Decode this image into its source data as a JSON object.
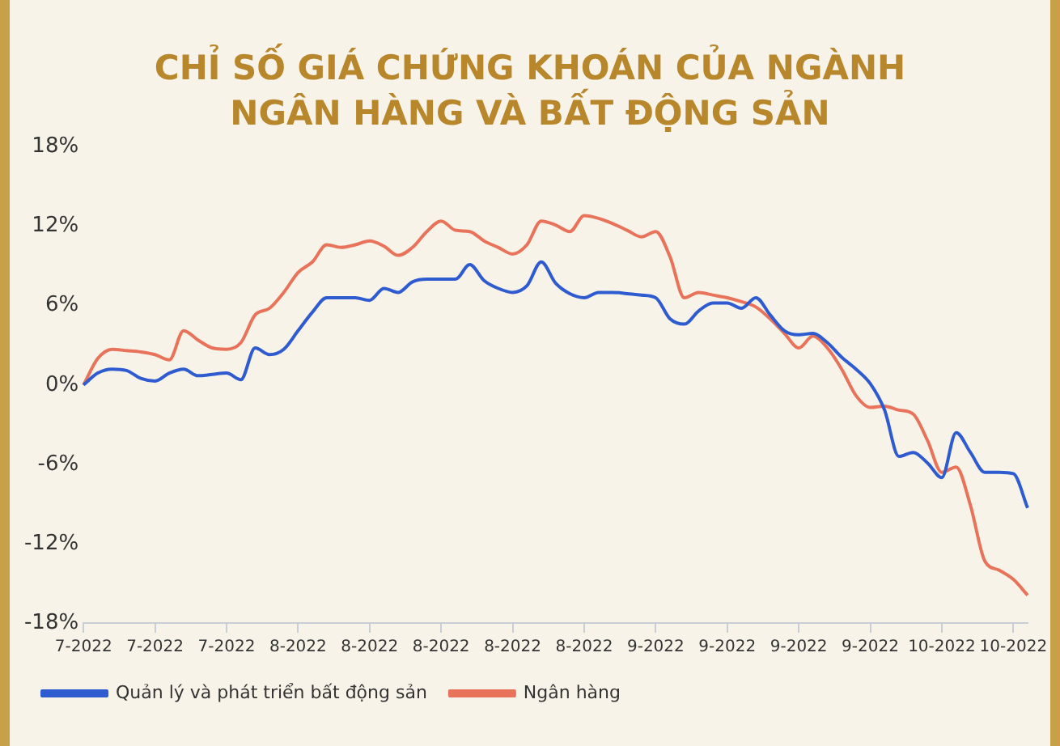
{
  "chart_data": {
    "type": "line",
    "title": "CHỈ SỐ GIÁ CHỨNG KHOÁN CỦA NGÀNH NGÂN HÀNG VÀ BẤT ĐỘNG SẢN",
    "categories": [
      "7-2022",
      null,
      null,
      null,
      null,
      "7-2022",
      null,
      null,
      null,
      null,
      "7-2022",
      null,
      null,
      null,
      null,
      "8-2022",
      null,
      null,
      null,
      null,
      "8-2022",
      null,
      null,
      null,
      null,
      "8-2022",
      null,
      null,
      null,
      null,
      "8-2022",
      null,
      null,
      null,
      null,
      "8-2022",
      null,
      null,
      null,
      null,
      "9-2022",
      null,
      null,
      null,
      null,
      "9-2022",
      null,
      null,
      null,
      null,
      "9-2022",
      null,
      null,
      null,
      null,
      "9-2022",
      null,
      null,
      null,
      null,
      "10-2022",
      null,
      null,
      null,
      null,
      "10-2022",
      null
    ],
    "series": [
      {
        "name": "Quản lý và phát triển bất động sản",
        "color": "#2f5bd0",
        "values": [
          0,
          0.9,
          1.2,
          1.1,
          0.5,
          0.3,
          0.9,
          1.2,
          0.7,
          0.8,
          0.9,
          0.4,
          2.8,
          2.3,
          2.7,
          4.1,
          5.5,
          6.6,
          6.6,
          6.6,
          6.4,
          7.3,
          7.0,
          7.8,
          8.0,
          8.0,
          8.0,
          9.1,
          7.9,
          7.3,
          7.0,
          7.5,
          9.3,
          7.7,
          6.9,
          6.6,
          7.0,
          7.0,
          6.9,
          6.8,
          6.6,
          5.0,
          4.6,
          5.6,
          6.2,
          6.2,
          5.8,
          6.6,
          5.3,
          4.1,
          3.8,
          3.9,
          3.2,
          2.1,
          1.2,
          0.1,
          -1.9,
          -5.4,
          -5.1,
          -5.9,
          -7.0,
          -3.6,
          -5.1,
          -6.6,
          -6.6,
          -6.7,
          -9.3
        ]
      },
      {
        "name": "Ngân hàng",
        "color": "#e8735a",
        "values": [
          0,
          2.0,
          2.7,
          2.6,
          2.5,
          2.3,
          1.9,
          4.1,
          3.4,
          2.8,
          2.7,
          3.2,
          5.3,
          5.8,
          7.0,
          8.5,
          9.3,
          10.6,
          10.4,
          10.6,
          10.9,
          10.5,
          9.8,
          10.4,
          11.6,
          12.4,
          11.7,
          11.6,
          10.9,
          10.4,
          9.9,
          10.6,
          12.4,
          12.1,
          11.6,
          12.8,
          12.6,
          12.2,
          11.7,
          11.2,
          11.6,
          9.7,
          6.6,
          7.0,
          6.8,
          6.6,
          6.3,
          5.9,
          5.0,
          3.9,
          2.8,
          3.7,
          2.8,
          1.2,
          -0.8,
          -1.7,
          -1.6,
          -1.9,
          -2.2,
          -4.2,
          -6.6,
          -6.2,
          -9.1,
          -13.3,
          -14.0,
          -14.7,
          -15.9
        ]
      }
    ],
    "ylim": [
      -18,
      18
    ],
    "yticks": [
      {
        "value": -18,
        "label": "-18%"
      },
      {
        "value": -12,
        "label": "-12%"
      },
      {
        "value": -6,
        "label": "-6%"
      },
      {
        "value": 0,
        "label": "0%"
      },
      {
        "value": 6,
        "label": "6%"
      },
      {
        "value": 12,
        "label": "12%"
      },
      {
        "value": 18,
        "label": "18%"
      }
    ],
    "legend": "bottom",
    "marker": "none",
    "line_style": "solid"
  }
}
